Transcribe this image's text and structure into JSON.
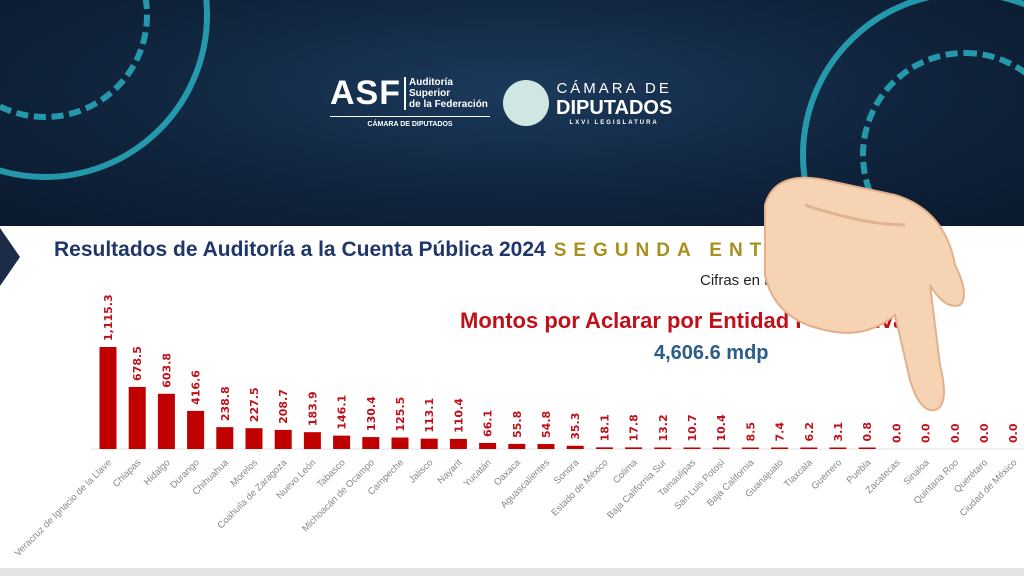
{
  "banner": {
    "asf_logo": {
      "big": "ASF",
      "line1": "Auditoría",
      "line2": "Superior",
      "line3": "de la Federación",
      "sub": "CÁMARA DE DIPUTADOS"
    },
    "camara_logo": {
      "line1": "CÁMARA DE",
      "line2": "DIPUTADOS",
      "line3": "LXVI LEGISLATURA"
    },
    "colors": {
      "background": "#10243d",
      "accent": "#2bb6c8"
    }
  },
  "header": {
    "title": "Resultados de Auditoría a la Cuenta Pública 2024",
    "subtitle": "SEGUNDA ENTREGA",
    "units": "Cifras en millones de pesos",
    "chart_heading": "Montos por Aclarar por Entidad Federativa:",
    "total": "4,606.6 mdp"
  },
  "overlay": {
    "icon": "pointing-hand-emoji"
  },
  "chart_data": {
    "type": "bar",
    "title": "Montos por Aclarar por Entidad Federativa:",
    "bar_color": "#c00000",
    "categories": [
      "Veracruz de Ignacio de la Llave",
      "Chiapas",
      "Hidalgo",
      "Durango",
      "Chihuahua",
      "Morelos",
      "Coahuila de Zaragoza",
      "Nuevo León",
      "Tabasco",
      "Michoacán de Ocampo",
      "Campeche",
      "Jalisco",
      "Nayarit",
      "Yucatán",
      "Oaxaca",
      "Aguascalientes",
      "Sonora",
      "Estado de México",
      "Colima",
      "Baja California Sur",
      "Tamaulipas",
      "San Luis Potosí",
      "Baja California",
      "Guanajuato",
      "Tlaxcala",
      "Guerrero",
      "Puebla",
      "Zacatecas",
      "Sinaloa",
      "Quintana Roo",
      "Querétaro",
      "Ciudad de México"
    ],
    "values": [
      1115.3,
      678.5,
      603.8,
      416.6,
      238.8,
      227.5,
      208.7,
      183.9,
      146.1,
      130.4,
      125.5,
      113.1,
      110.4,
      66.1,
      55.8,
      54.8,
      35.3,
      18.1,
      17.8,
      13.2,
      10.7,
      10.4,
      8.5,
      7.4,
      6.2,
      3.1,
      0.8,
      0.0,
      0.0,
      0.0,
      0.0,
      0.0
    ],
    "data_labels": [
      "1,115.3",
      "678.5",
      "603.8",
      "416.6",
      "238.8",
      "227.5",
      "208.7",
      "183.9",
      "146.1",
      "130.4",
      "125.5",
      "113.1",
      "110.4",
      "66.1",
      "55.8",
      "54.8",
      "35.3",
      "18.1",
      "17.8",
      "13.2",
      "10.7",
      "10.4",
      "8.5",
      "7.4",
      "6.2",
      "3.1",
      "0.8",
      "0.0",
      "0.0",
      "0.0",
      "0.0",
      "0.0"
    ],
    "xlabel": "",
    "ylabel": "",
    "grid": false,
    "legend": "none"
  }
}
